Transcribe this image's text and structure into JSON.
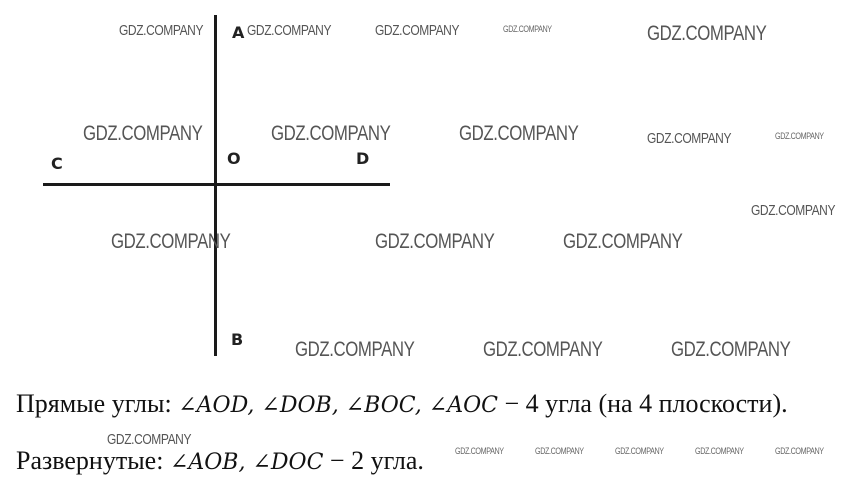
{
  "watermark": "GDZ.COMPANY",
  "labels": {
    "A": "A",
    "O": "O",
    "D": "D",
    "C": "C",
    "B": "B"
  },
  "line1": {
    "prefix": "Прямые углы: ",
    "math": "∠AOD, ∠DOB, ∠BOC, ∠AOC",
    "suffix": " − 4 угла (на 4 плоскости)."
  },
  "line2": {
    "prefix": "Развернутые: ",
    "math": "∠AOB, ∠DOC",
    "suffix": " − 2 угла."
  }
}
